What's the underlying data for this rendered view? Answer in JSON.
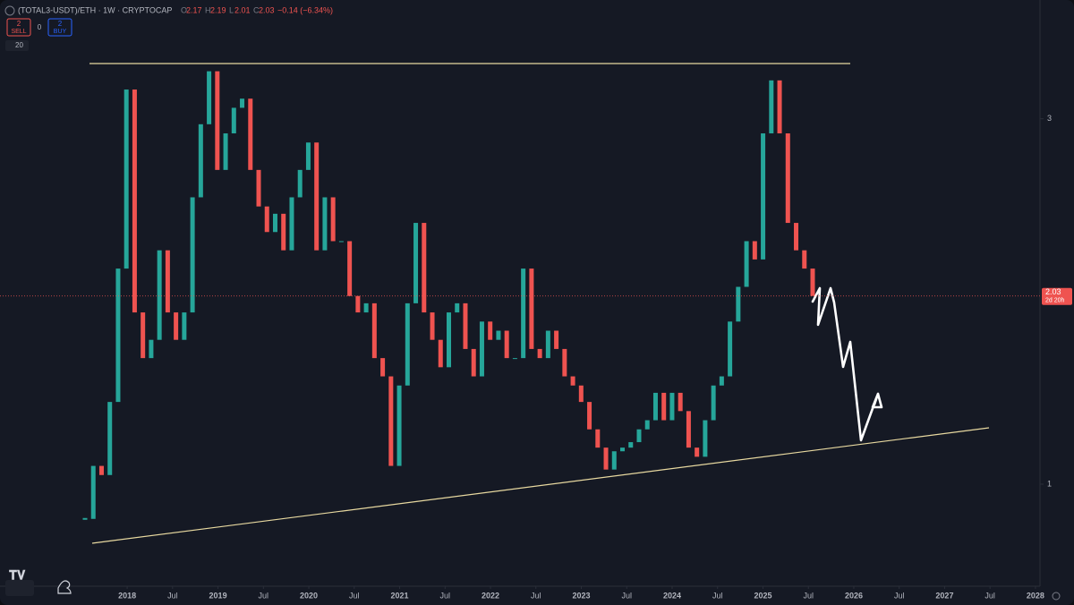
{
  "header": {
    "symbol": "(TOTAL3-USDT)/ETH · 1W · CRYPTOCAP",
    "open_label": "O",
    "open": "2.17",
    "high_label": "H",
    "high": "2.19",
    "low_label": "L",
    "low": "2.01",
    "close_label": "C",
    "close": "2.03",
    "change": "−0.14 (−6.34%)"
  },
  "trade": {
    "sell_count": "2",
    "sell": "SELL",
    "spread": "0",
    "buy_count": "2",
    "buy": "BUY"
  },
  "indicator": "20",
  "price_tag": {
    "price": "2.03",
    "countdown": "2d 20h"
  },
  "chart_data": {
    "type": "candlestick",
    "values": [
      0.81,
      1.1,
      1.05,
      1.45,
      2.18,
      3.16,
      1.94,
      1.69,
      1.79,
      2.28,
      1.94,
      1.79,
      1.94,
      2.57,
      2.97,
      3.26,
      2.72,
      2.92,
      3.06,
      3.11,
      2.72,
      2.52,
      2.38,
      2.48,
      2.28,
      2.57,
      2.72,
      2.87,
      2.28,
      2.57,
      2.33,
      2.33,
      2.03,
      1.94,
      1.99,
      1.69,
      1.59,
      1.1,
      1.54,
      1.99,
      2.43,
      1.94,
      1.79,
      1.64,
      1.94,
      1.99,
      1.74,
      1.59,
      1.89,
      1.79,
      1.84,
      1.69,
      1.69,
      2.18,
      1.74,
      1.69,
      1.84,
      1.74,
      1.59,
      1.54,
      1.45,
      1.3,
      1.2,
      1.08,
      1.18,
      1.2,
      1.23,
      1.3,
      1.35,
      1.5,
      1.35,
      1.5,
      1.4,
      1.2,
      1.15,
      1.35,
      1.54,
      1.59,
      1.89,
      2.08,
      2.33,
      2.23,
      2.92,
      3.21,
      2.92,
      2.43,
      2.28,
      2.18,
      2.03
    ],
    "up_color": "#26a69a",
    "down_color": "#ef5350",
    "ylim": [
      0.466,
      3.65
    ],
    "yticks": [
      1,
      3
    ],
    "xlim": [
      2016.6,
      2028.05
    ],
    "xticks": [
      2018,
      {
        "value": 2018.5,
        "label": "Jul"
      },
      2019,
      {
        "value": 2019.5,
        "label": "Jul"
      },
      2020,
      {
        "value": 2020.5,
        "label": "Jul"
      },
      2021,
      {
        "value": 2021.5,
        "label": "Jul"
      },
      2022,
      {
        "value": 2022.5,
        "label": "Jul"
      },
      2023,
      {
        "value": 2023.5,
        "label": "Jul"
      },
      2024,
      {
        "value": 2024.5,
        "label": "Jul"
      },
      2025,
      {
        "value": 2025.5,
        "label": "Jul"
      },
      2026,
      {
        "value": 2026.5,
        "label": "Jul"
      },
      2027,
      {
        "value": 2027.5,
        "label": "Jul"
      },
      2028
    ]
  }
}
